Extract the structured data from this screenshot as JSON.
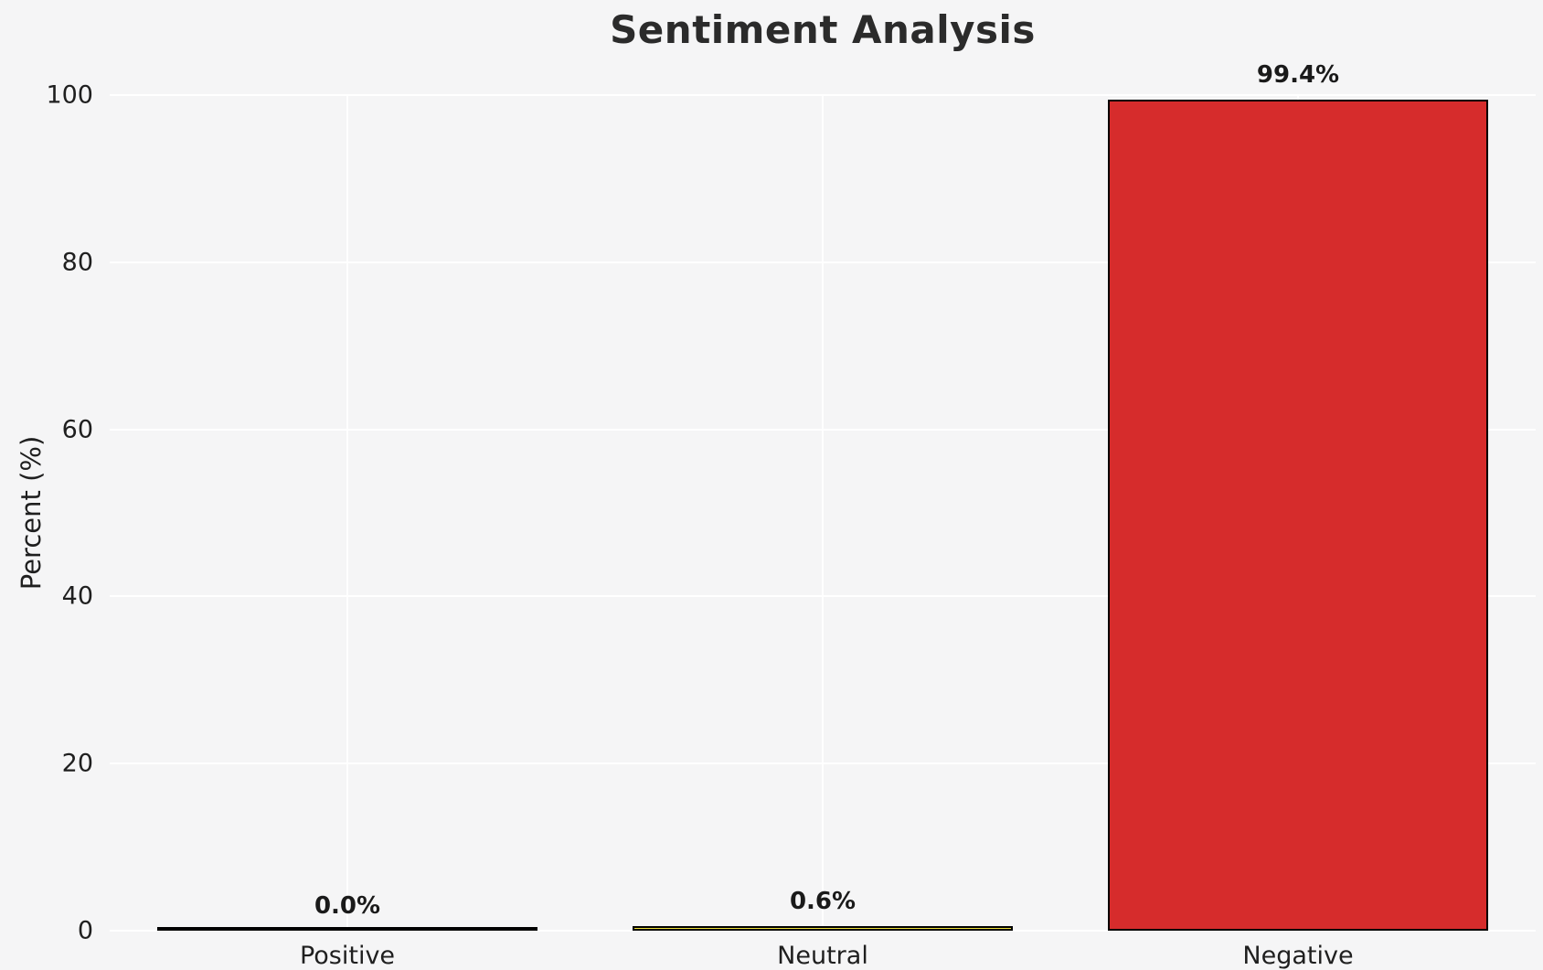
{
  "chart_data": {
    "type": "bar",
    "title": "Sentiment Analysis",
    "xlabel": "",
    "ylabel": "Percent (%)",
    "categories": [
      "Positive",
      "Neutral",
      "Negative"
    ],
    "values": [
      0.0,
      0.6,
      99.4
    ],
    "value_labels": [
      "0.0%",
      "0.6%",
      "99.4%"
    ],
    "bar_colors": [
      "#cccccc",
      "#f0e23e",
      "#d62c2c"
    ],
    "bar_edge_color": "#000000",
    "ylim": [
      0,
      100
    ],
    "yticks": [
      0,
      20,
      40,
      60,
      80,
      100
    ],
    "grid": true,
    "gridline_color": "#ffffff",
    "background_color": "#f5f5f6",
    "legend": "none"
  }
}
